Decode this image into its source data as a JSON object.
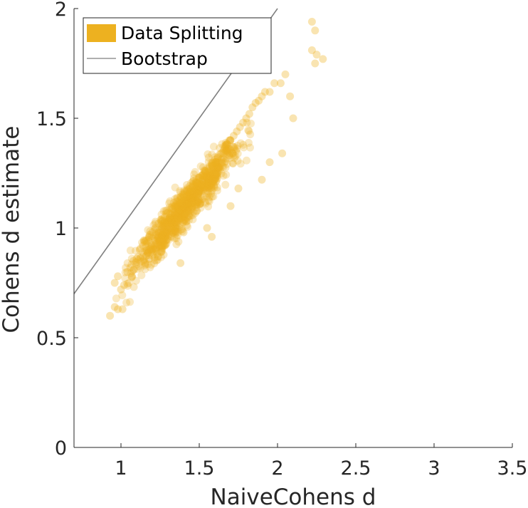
{
  "colors": {
    "data_splitting": "#EDB120",
    "bootstrap": "#7f7f7f",
    "axis": "#262626"
  },
  "chart_data": {
    "type": "scatter",
    "xlabel": "NaiveCohens d",
    "ylabel": "Cohens d estimate",
    "xlim": [
      0.7,
      3.5
    ],
    "ylim": [
      0,
      2
    ],
    "x_ticks": [
      "1",
      "1.5",
      "2",
      "2.5",
      "3",
      "3.5"
    ],
    "y_ticks": [
      "0",
      "0.5",
      "1",
      "1.5",
      "2"
    ],
    "grid": false,
    "legend": {
      "placement": "top-left",
      "entries": [
        "Data Splitting",
        "Bootstrap"
      ]
    },
    "series": [
      {
        "name": "Data Splitting",
        "kind": "scatter",
        "note_points": "dense point cloud; representative sample listed",
        "points": [
          [
            0.93,
            0.6
          ],
          [
            0.96,
            0.64
          ],
          [
            0.98,
            0.63
          ],
          [
            1.01,
            0.63
          ],
          [
            0.96,
            0.75
          ],
          [
            0.98,
            0.78
          ],
          [
            1.0,
            0.72
          ],
          [
            1.02,
            0.74
          ],
          [
            1.04,
            0.8
          ],
          [
            1.06,
            0.82
          ],
          [
            1.08,
            0.85
          ],
          [
            1.1,
            0.86
          ],
          [
            1.12,
            0.9
          ],
          [
            1.14,
            0.92
          ],
          [
            1.16,
            0.94
          ],
          [
            1.18,
            0.96
          ],
          [
            1.2,
            0.98
          ],
          [
            1.22,
            1.0
          ],
          [
            1.24,
            1.02
          ],
          [
            1.26,
            1.04
          ],
          [
            1.28,
            1.05
          ],
          [
            1.3,
            1.07
          ],
          [
            1.32,
            1.09
          ],
          [
            1.34,
            1.1
          ],
          [
            1.36,
            1.12
          ],
          [
            1.38,
            1.14
          ],
          [
            1.4,
            1.15
          ],
          [
            1.42,
            1.17
          ],
          [
            1.44,
            1.18
          ],
          [
            1.46,
            1.2
          ],
          [
            1.48,
            1.21
          ],
          [
            1.5,
            1.23
          ],
          [
            1.52,
            1.24
          ],
          [
            1.54,
            1.26
          ],
          [
            1.56,
            1.27
          ],
          [
            1.58,
            1.29
          ],
          [
            1.6,
            1.3
          ],
          [
            1.62,
            1.32
          ],
          [
            1.64,
            1.34
          ],
          [
            1.66,
            1.36
          ],
          [
            1.68,
            1.38
          ],
          [
            1.7,
            1.4
          ],
          [
            1.72,
            1.42
          ],
          [
            1.74,
            1.44
          ],
          [
            1.76,
            1.46
          ],
          [
            1.78,
            1.48
          ],
          [
            1.8,
            1.5
          ],
          [
            1.82,
            1.52
          ],
          [
            1.84,
            1.55
          ],
          [
            1.86,
            1.57
          ],
          [
            1.88,
            1.58
          ],
          [
            1.9,
            1.6
          ],
          [
            1.92,
            1.62
          ],
          [
            1.95,
            1.62
          ],
          [
            1.98,
            1.66
          ],
          [
            2.02,
            1.66
          ],
          [
            2.05,
            1.7
          ],
          [
            2.08,
            1.6
          ],
          [
            2.1,
            1.5
          ],
          [
            2.03,
            1.34
          ],
          [
            2.22,
            1.94
          ],
          [
            2.24,
            1.9
          ],
          [
            2.22,
            1.81
          ],
          [
            2.25,
            1.79
          ],
          [
            2.29,
            1.77
          ],
          [
            2.24,
            1.75
          ],
          [
            1.38,
            0.84
          ],
          [
            1.28,
            0.92
          ],
          [
            1.4,
            0.98
          ],
          [
            1.55,
            1.0
          ],
          [
            1.58,
            0.96
          ],
          [
            1.7,
            1.1
          ],
          [
            1.75,
            1.18
          ],
          [
            1.9,
            1.22
          ],
          [
            1.95,
            1.3
          ]
        ]
      },
      {
        "name": "Bootstrap",
        "kind": "line",
        "points": [
          [
            0.7,
            0.7
          ],
          [
            2.0,
            2.0
          ]
        ]
      }
    ]
  }
}
